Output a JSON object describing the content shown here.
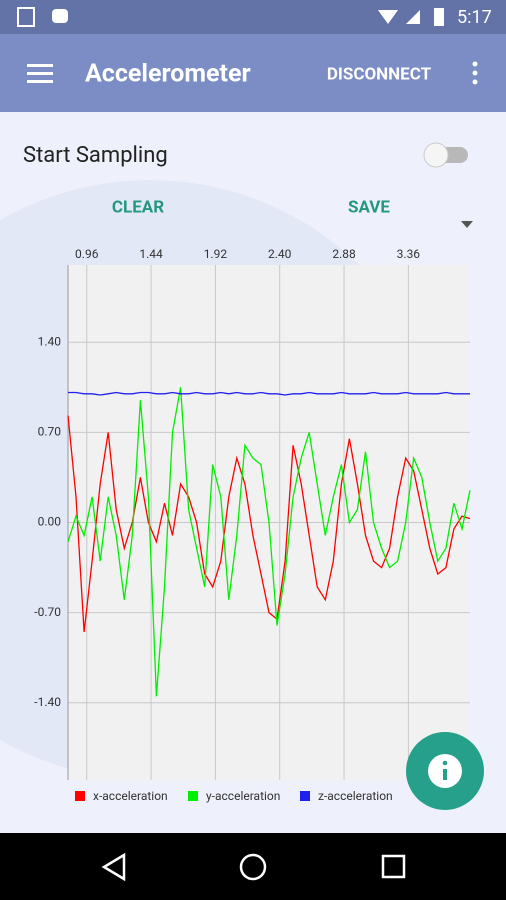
{
  "status_bar": {
    "time": "5:17"
  },
  "app_bar": {
    "title": "Accelerometer",
    "action": "DISCONNECT"
  },
  "controls": {
    "label": "Start Sampling",
    "clear": "CLEAR",
    "save": "SAVE"
  },
  "chart_data": {
    "type": "line",
    "x": [
      0.82,
      0.88,
      0.94,
      1.0,
      1.06,
      1.12,
      1.18,
      1.24,
      1.3,
      1.36,
      1.42,
      1.48,
      1.54,
      1.6,
      1.66,
      1.72,
      1.78,
      1.84,
      1.9,
      1.96,
      2.02,
      2.08,
      2.14,
      2.2,
      2.26,
      2.32,
      2.38,
      2.44,
      2.5,
      2.56,
      2.62,
      2.68,
      2.74,
      2.8,
      2.86,
      2.92,
      2.98,
      3.04,
      3.1,
      3.16,
      3.22,
      3.28,
      3.34,
      3.4,
      3.46,
      3.52,
      3.58,
      3.64,
      3.7,
      3.76,
      3.82
    ],
    "series": [
      {
        "name": "x-acceleration",
        "color": "#ff0000",
        "values": [
          0.83,
          0.2,
          -0.85,
          -0.3,
          0.3,
          0.7,
          0.1,
          -0.2,
          0.0,
          0.35,
          0.0,
          -0.15,
          0.15,
          -0.1,
          0.3,
          0.2,
          0.0,
          -0.4,
          -0.5,
          -0.3,
          0.2,
          0.5,
          0.3,
          -0.1,
          -0.4,
          -0.7,
          -0.75,
          -0.3,
          0.6,
          0.3,
          -0.1,
          -0.5,
          -0.6,
          -0.3,
          0.3,
          0.65,
          0.3,
          -0.1,
          -0.3,
          -0.35,
          -0.2,
          0.2,
          0.5,
          0.4,
          0.1,
          -0.2,
          -0.4,
          -0.35,
          -0.05,
          0.05,
          0.03
        ]
      },
      {
        "name": "y-acceleration",
        "color": "#00ee00",
        "values": [
          -0.15,
          0.05,
          -0.1,
          0.2,
          -0.3,
          0.2,
          -0.1,
          -0.6,
          -0.1,
          0.95,
          0.2,
          -1.35,
          -0.5,
          0.7,
          1.05,
          0.1,
          -0.2,
          -0.5,
          0.45,
          0.2,
          -0.6,
          -0.1,
          0.6,
          0.5,
          0.45,
          0.0,
          -0.8,
          -0.4,
          0.2,
          0.5,
          0.7,
          0.3,
          -0.1,
          0.2,
          0.45,
          0.0,
          0.1,
          0.55,
          0.0,
          -0.2,
          -0.35,
          -0.3,
          0.0,
          0.5,
          0.35,
          0.0,
          -0.3,
          -0.2,
          0.15,
          -0.05,
          0.25
        ]
      },
      {
        "name": "z-acceleration",
        "color": "#2020ee",
        "values": [
          1.01,
          1.01,
          1.0,
          1.0,
          0.99,
          1.0,
          1.01,
          1.0,
          1.0,
          1.01,
          1.01,
          1.0,
          1.0,
          1.01,
          1.0,
          1.0,
          1.01,
          1.0,
          1.0,
          1.01,
          1.0,
          1.01,
          1.0,
          1.0,
          1.01,
          1.0,
          1.0,
          0.99,
          1.0,
          1.0,
          1.01,
          1.0,
          1.0,
          1.0,
          1.01,
          1.0,
          1.0,
          1.0,
          1.01,
          1.0,
          1.0,
          1.0,
          1.01,
          1.0,
          1.0,
          1.0,
          1.0,
          1.01,
          1.0,
          1.0,
          1.0
        ]
      }
    ],
    "xlim": [
      0.82,
      3.82
    ],
    "ylim": [
      -2.0,
      2.0
    ],
    "xticks": [
      0.96,
      1.44,
      1.92,
      {
        "value": 2.4,
        "label": "2.40"
      },
      2.88,
      3.36
    ],
    "yticks": [
      {
        "value": 1.4,
        "label": "1.40"
      },
      {
        "value": 0.7,
        "label": "0.70"
      },
      {
        "value": 0,
        "label": "0.00"
      },
      {
        "value": -0.7,
        "label": "-0.70"
      },
      {
        "value": -1.4,
        "label": "-1.40"
      }
    ],
    "grid": true
  }
}
